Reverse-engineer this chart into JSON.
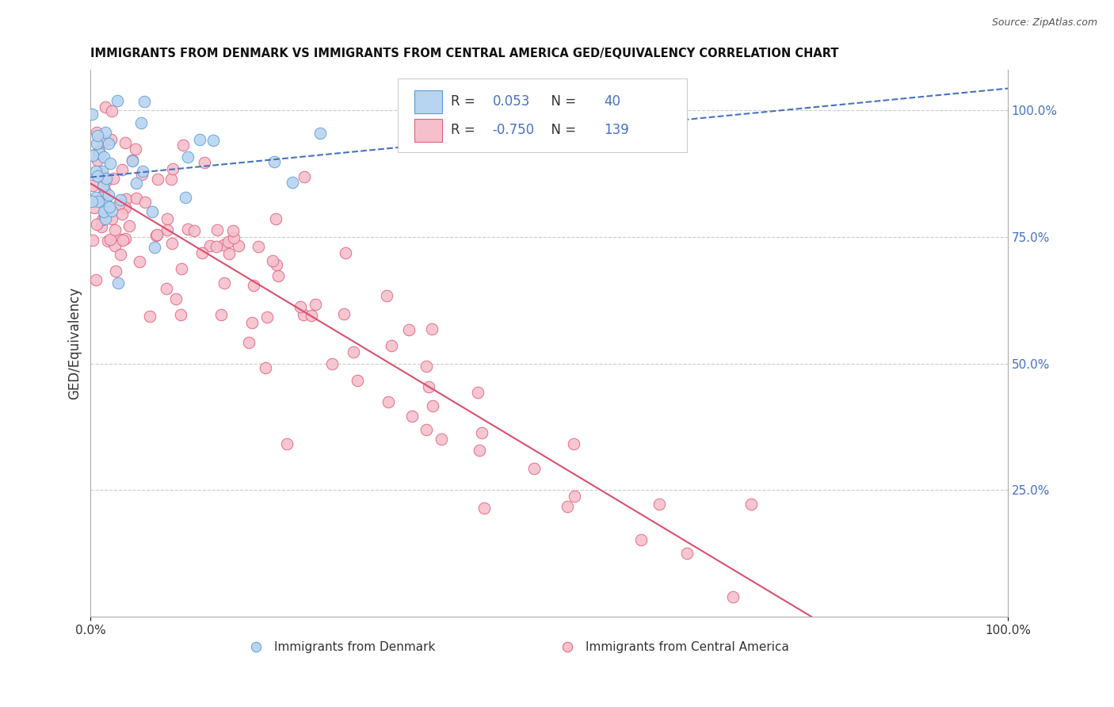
{
  "title": "IMMIGRANTS FROM DENMARK VS IMMIGRANTS FROM CENTRAL AMERICA GED/EQUIVALENCY CORRELATION CHART",
  "source": "Source: ZipAtlas.com",
  "ylabel": "GED/Equivalency",
  "legend1_label": "Immigrants from Denmark",
  "legend2_label": "Immigrants from Central America",
  "R_denmark": 0.053,
  "N_denmark": 40,
  "R_central": -0.75,
  "N_central": 139,
  "color_denmark_face": "#b8d4f0",
  "color_denmark_edge": "#5b9bd5",
  "color_central_face": "#f5c0cc",
  "color_central_edge": "#e06080",
  "line_denmark_color": "#4472c4",
  "line_central_color": "#d94f6e",
  "text_color": "#333333",
  "rn_color": "#4472c4",
  "grid_color": "#cccccc",
  "background_color": "#ffffff",
  "xlim": [
    0,
    1.0
  ],
  "ylim": [
    0,
    1.08
  ],
  "right_yticks": [
    0.0,
    0.25,
    0.5,
    0.75,
    1.0
  ],
  "right_yticklabels": [
    "",
    "25.0%",
    "50.0%",
    "75.0%",
    "100.0%"
  ]
}
